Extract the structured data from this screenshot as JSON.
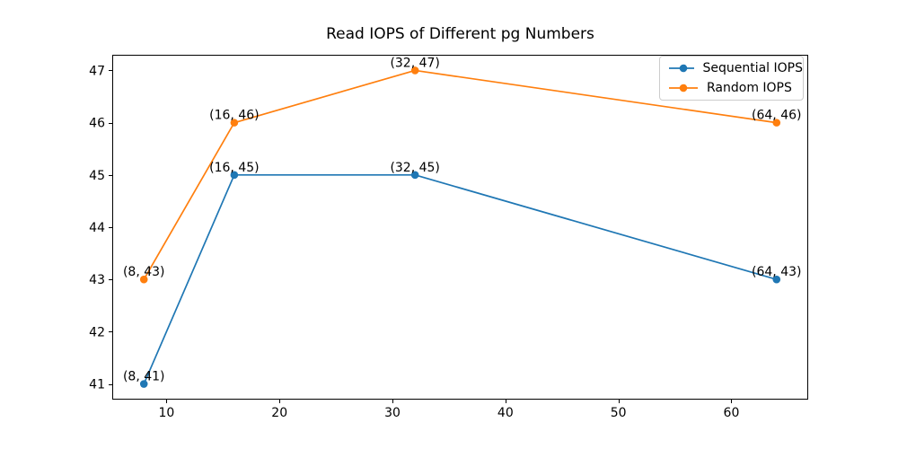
{
  "figure": {
    "background": "#ffffff"
  },
  "chart_data": {
    "type": "line",
    "title": "Read IOPS of Different pg Numbers",
    "xlabel": "",
    "ylabel": "",
    "x": [
      8,
      16,
      32,
      64
    ],
    "series": [
      {
        "name": "Sequential IOPS",
        "color": "#1f77b4",
        "values": [
          41,
          45,
          45,
          43
        ]
      },
      {
        "name": "Random IOPS",
        "color": "#ff7f0e",
        "values": [
          43,
          46,
          47,
          46
        ]
      }
    ],
    "annotations": [
      {
        "text": "(8, 41)",
        "x": 8,
        "y": 41
      },
      {
        "text": "(16, 45)",
        "x": 16,
        "y": 45
      },
      {
        "text": "(32, 45)",
        "x": 32,
        "y": 45
      },
      {
        "text": "(64, 43)",
        "x": 64,
        "y": 43
      },
      {
        "text": "(8, 43)",
        "x": 8,
        "y": 43
      },
      {
        "text": "(16, 46)",
        "x": 16,
        "y": 46
      },
      {
        "text": "(32, 47)",
        "x": 32,
        "y": 47
      },
      {
        "text": "(64, 46)",
        "x": 64,
        "y": 46
      }
    ],
    "xticks": [
      10,
      20,
      30,
      40,
      50,
      60
    ],
    "yticks": [
      41,
      42,
      43,
      44,
      45,
      46,
      47
    ],
    "xlim": [
      5.2,
      66.8
    ],
    "ylim": [
      40.7,
      47.3
    ],
    "grid": false,
    "marker": "circle",
    "legend": {
      "position": "upper right"
    },
    "axis_color": "#000000",
    "legend_border_color": "#cccccc"
  }
}
